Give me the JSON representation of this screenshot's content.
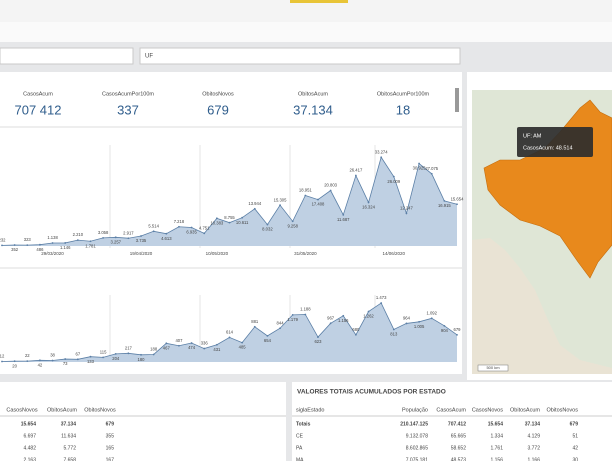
{
  "filters": {
    "uf_label": "UF"
  },
  "kpis": [
    {
      "label": "CasosAcum",
      "value": "707 412"
    },
    {
      "label": "CasosAcumPor100m",
      "value": "337"
    },
    {
      "label": "ObitosNovos",
      "value": "679"
    },
    {
      "label": "ObitosAcum",
      "value": "37.134"
    },
    {
      "label": "ObitosAcumPor100m",
      "value": "18"
    }
  ],
  "chart_data": [
    {
      "type": "area",
      "color": "#5b7fa6",
      "fill": "#bfd0e3",
      "ylim": [
        0,
        36000
      ],
      "categories": [
        null,
        null,
        null,
        null,
        "29/03/2020",
        null,
        null,
        null,
        null,
        null,
        null,
        "19/04/2020",
        null,
        null,
        null,
        null,
        null,
        "10/05/2020",
        null,
        null,
        null,
        null,
        null,
        null,
        "31/05/2020",
        null,
        null,
        null,
        null,
        null,
        null,
        "14/06/2020",
        null,
        null,
        null,
        null,
        null
      ],
      "values": [
        232,
        352,
        323,
        486,
        1138,
        1146,
        2210,
        1781,
        3058,
        3257,
        2917,
        3735,
        5514,
        4613,
        7218,
        6935,
        4751,
        10383,
        8755,
        10611,
        13944,
        8032,
        15305,
        9258,
        18951,
        17408,
        20803,
        11687,
        26417,
        16324,
        33274,
        26009,
        12247,
        30925,
        27075,
        16915,
        15654
      ],
      "value_labels": [
        "232",
        "352",
        "323",
        "486",
        "1.138",
        "1.146",
        "2.210",
        "1.781",
        "3.058",
        "3.257",
        "2.917",
        "3.735",
        "5.514",
        "4.613",
        "7.218",
        "6.935",
        "4.751",
        "10.383",
        "8.755",
        "10.611",
        "13.944",
        "8.032",
        "15.305",
        "9.258",
        "18.951",
        "17.408",
        "20.803",
        "11.687",
        "26.417",
        "16.324",
        "33.274",
        "26.009",
        "12.247",
        "30.925",
        "27.075",
        "16.915",
        "15.654"
      ]
    },
    {
      "type": "area",
      "color": "#5b7fa6",
      "fill": "#bfd0e3",
      "ylim": [
        0,
        1600
      ],
      "categories": [
        null,
        null,
        null,
        null,
        null,
        null,
        null,
        null,
        null,
        null,
        null,
        null,
        null,
        null,
        null,
        null,
        null,
        null,
        null,
        null,
        null,
        null,
        null,
        null,
        null,
        null,
        null,
        null,
        null,
        null,
        null,
        null,
        null,
        null,
        null,
        null,
        null
      ],
      "values": [
        12,
        20,
        22,
        42,
        38,
        73,
        67,
        133,
        115,
        204,
        217,
        180,
        188,
        467,
        407,
        474,
        336,
        431,
        614,
        485,
        881,
        654,
        844,
        1179,
        1188,
        623,
        967,
        1156,
        680,
        1262,
        1473,
        813,
        964,
        1005,
        1092,
        904,
        679
      ],
      "value_labels": [
        "12",
        "20",
        "22",
        "42",
        "38",
        "73",
        "67",
        "133",
        "115",
        "204",
        "217",
        "180",
        "188",
        "467",
        "407",
        "474",
        "336",
        "431",
        "614",
        "485",
        "881",
        "654",
        "844",
        "1.179",
        "1.188",
        "623",
        "967",
        "1.156",
        "680",
        "1.262",
        "1.473",
        "813",
        "964",
        "1.005",
        "1.092",
        "904",
        "679"
      ]
    }
  ],
  "map": {
    "tooltip": [
      "UF: AM",
      "CasosAcum: 48.514"
    ],
    "scale": "500 km"
  },
  "left_table": {
    "headers": [
      "CasosNovos",
      "ObitosAcum",
      "ObitosNovos"
    ],
    "rows": [
      [
        "15.654",
        "37.134",
        "679"
      ],
      [
        "6.697",
        "11.634",
        "355"
      ],
      [
        "4.482",
        "5.772",
        "165"
      ],
      [
        "2.163",
        "7.658",
        "167"
      ]
    ]
  },
  "state_table": {
    "title": "VALORES TOTAIS ACUMULADOS POR ESTADO",
    "headers": [
      "siglaEstado",
      "População",
      "CasosAcum",
      "CasosNovos",
      "ObitosAcum",
      "ObitosNovos"
    ],
    "rows": [
      [
        "Totais",
        "210.147.125",
        "707.412",
        "15.654",
        "37.134",
        "679"
      ],
      [
        "CE",
        "9.132.078",
        "65.665",
        "1.334",
        "4.129",
        "51"
      ],
      [
        "PA",
        "8.602.865",
        "58.652",
        "1.761",
        "3.772",
        "42"
      ],
      [
        "MA",
        "7.075.181",
        "48.573",
        "1.156",
        "1.166",
        "30"
      ]
    ]
  }
}
